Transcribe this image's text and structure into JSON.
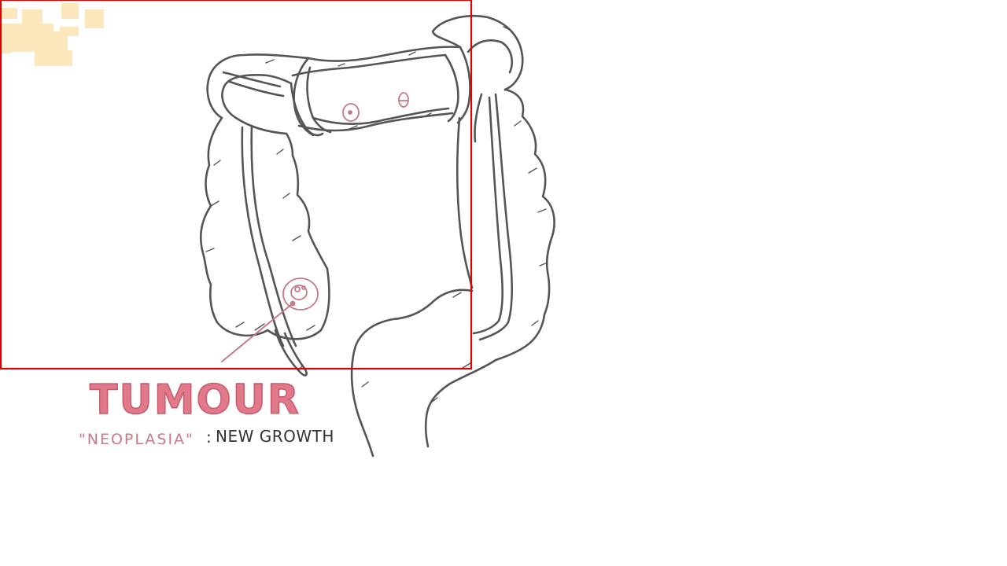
{
  "labels": {
    "tumour": "TUMOUR",
    "neoplasia": "\"NEOPLASIA\"",
    "separator": ":",
    "new_growth": "NEW GROWTH"
  },
  "colors": {
    "background": "#ffffff",
    "outline": "#555555",
    "tumour_fill": "#e07a8a",
    "tumour_stroke": "#c85a6c",
    "tumour_marker": "#c57a86",
    "selection_box": "#e00000",
    "highlight_patch": "#fbe3b0"
  },
  "icons": {
    "highlight": "highlight-patches-icon"
  }
}
